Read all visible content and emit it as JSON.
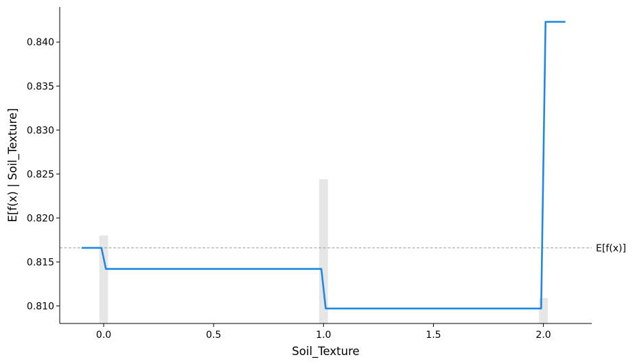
{
  "chart_data": {
    "type": "line",
    "title": "",
    "xlabel": "Soil_Texture",
    "ylabel": "E[f(x) | Soil_Texture]",
    "xlim": [
      -0.2,
      2.22
    ],
    "ylim": [
      0.808,
      0.844
    ],
    "x_ticks": [
      0.0,
      0.5,
      1.0,
      1.5,
      2.0
    ],
    "x_tick_labels": [
      "0.0",
      "0.5",
      "1.0",
      "1.5",
      "2.0"
    ],
    "y_ticks": [
      0.81,
      0.815,
      0.82,
      0.825,
      0.83,
      0.835,
      0.84
    ],
    "y_tick_labels": [
      "0.810",
      "0.815",
      "0.820",
      "0.825",
      "0.830",
      "0.835",
      "0.840"
    ],
    "series": [
      {
        "x": [
          -0.1,
          -0.01,
          0.01,
          0.99,
          1.01,
          1.99,
          2.01,
          2.1
        ],
        "y": [
          0.8166,
          0.8166,
          0.8142,
          0.8142,
          0.8097,
          0.8097,
          0.8423,
          0.8423
        ],
        "color": "#1E88E5"
      }
    ],
    "histogram": {
      "x": [
        0.0,
        1.0,
        2.0
      ],
      "y_top": [
        0.818,
        0.8244,
        0.8109
      ],
      "half_width": 0.02,
      "color": "#e6e6e6"
    },
    "reference_line": {
      "y": 0.8166,
      "label": "E[f(x)]",
      "color": "#999999"
    },
    "grid": false,
    "legend": "none"
  }
}
